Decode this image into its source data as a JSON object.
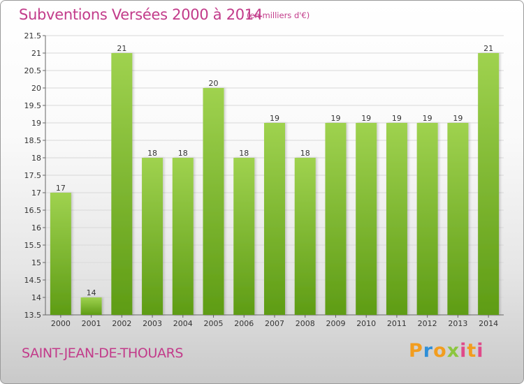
{
  "header": {
    "title": "Subventions Versées 2000 à 2014",
    "unit": "(en milliers d'€)"
  },
  "footer": {
    "commune": "SAINT-JEAN-DE-THOUARS",
    "brand": "Proxiti"
  },
  "colors": {
    "title": "#c23b8a",
    "bar_light": "#9fd24f",
    "bar_dark": "#5e9c15"
  },
  "chart_data": {
    "type": "bar",
    "categories": [
      "2000",
      "2001",
      "2002",
      "2003",
      "2004",
      "2005",
      "2006",
      "2007",
      "2008",
      "2009",
      "2010",
      "2011",
      "2012",
      "2013",
      "2014"
    ],
    "values": [
      17,
      14,
      21,
      18,
      18,
      20,
      18,
      19,
      18,
      19,
      19,
      19,
      19,
      19,
      21
    ],
    "title": "Subventions Versées 2000 à 2014",
    "ylabel": "(en milliers d'€)",
    "ylim": [
      13.5,
      21.5
    ],
    "yticks": [
      13.5,
      14,
      14.5,
      15,
      15.5,
      16,
      16.5,
      17,
      17.5,
      18,
      18.5,
      19,
      19.5,
      20,
      20.5,
      21,
      21.5
    ],
    "grid": true
  }
}
